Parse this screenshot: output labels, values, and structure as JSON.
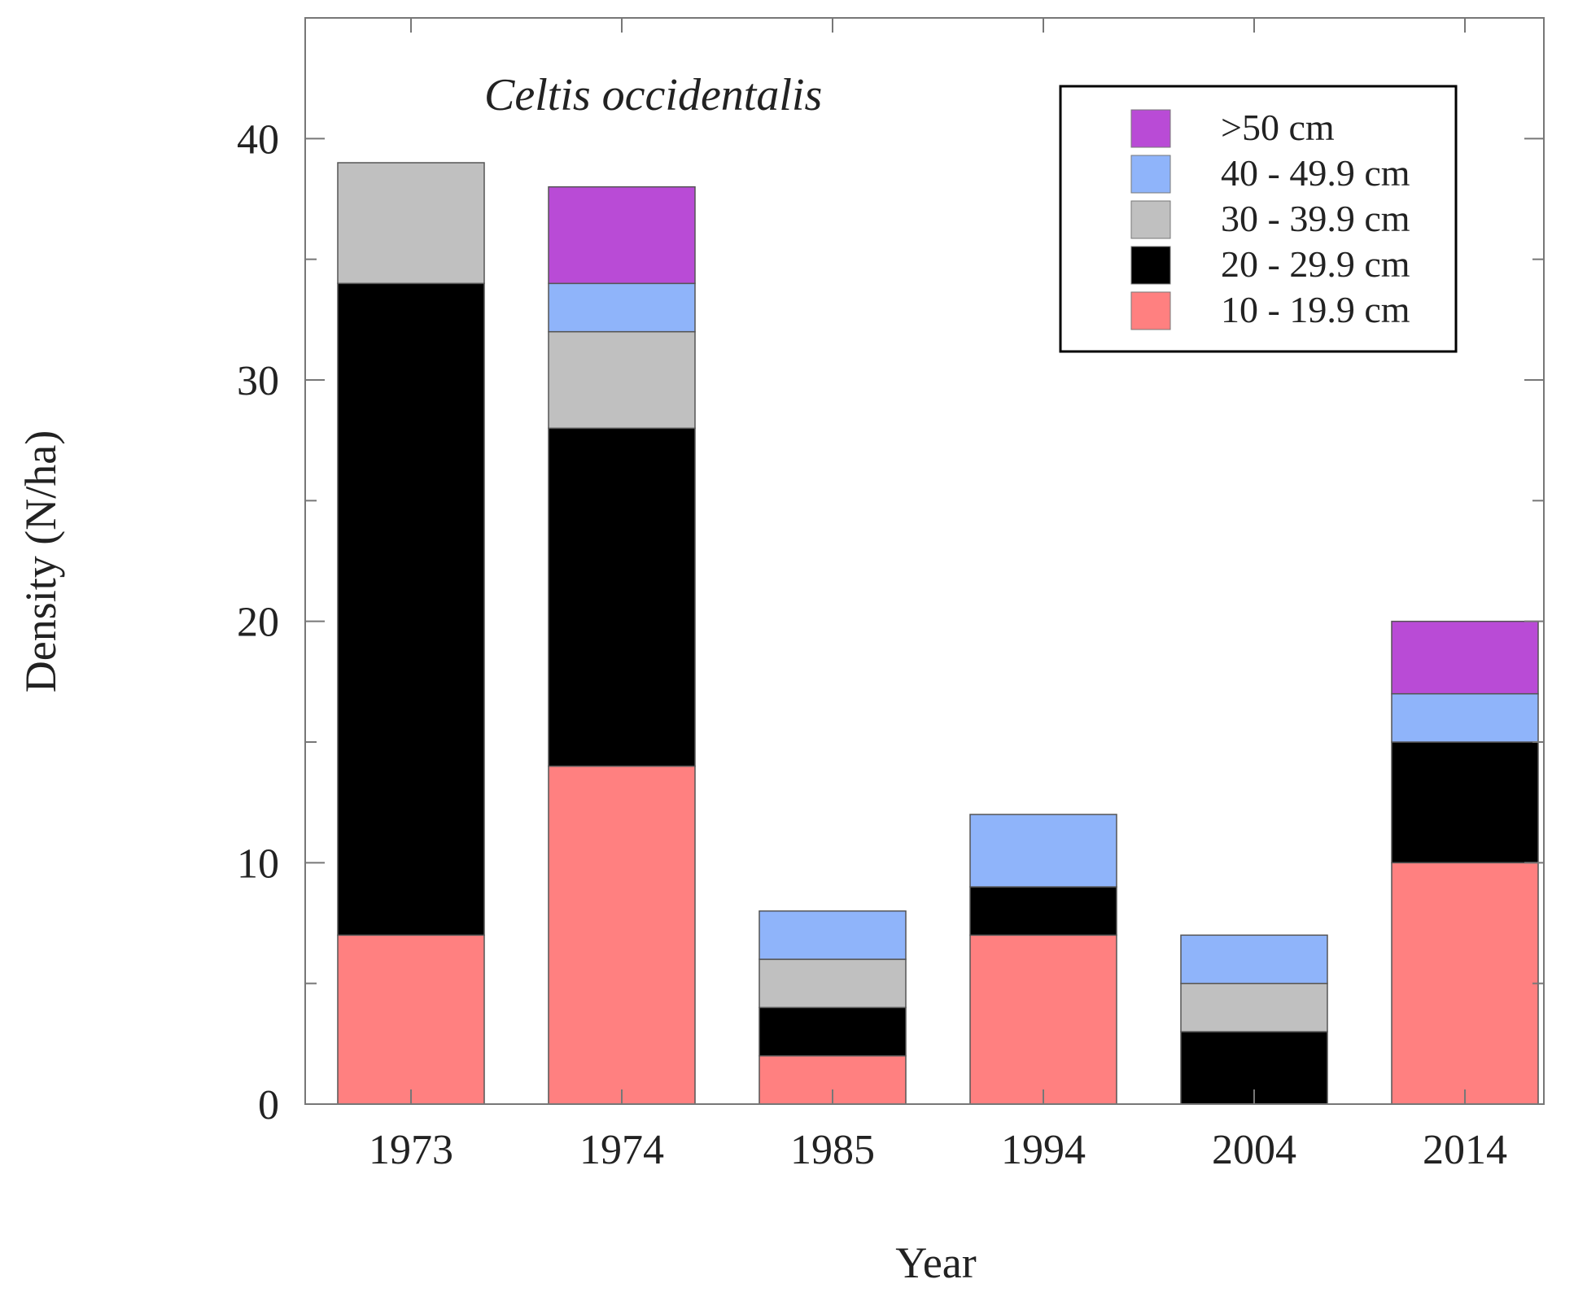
{
  "chart_data": {
    "type": "bar",
    "stacked": true,
    "title": "",
    "annotation": "Celtis occidentalis",
    "xlabel": "Year",
    "ylabel": "Density (N/ha)",
    "ylim": [
      0,
      45
    ],
    "yticks": [
      0,
      10,
      20,
      30,
      40
    ],
    "yminor_ticks": [
      5,
      15,
      25,
      35
    ],
    "grid": false,
    "legend_position": "top-right",
    "categories": [
      "1973",
      "1974",
      "1985",
      "1994",
      "2004",
      "2014"
    ],
    "series": [
      {
        "name": "10 - 19.9 cm",
        "color": "#ff8080",
        "values": [
          7,
          14,
          2,
          7,
          0,
          10
        ]
      },
      {
        "name": "20 - 29.9 cm",
        "color": "#000000",
        "values": [
          27,
          14,
          2,
          2,
          3,
          5
        ]
      },
      {
        "name": "30 - 39.9 cm",
        "color": "#c0c0c0",
        "values": [
          5,
          4,
          2,
          0,
          2,
          0
        ]
      },
      {
        "name": "40 - 49.9 cm",
        "color": "#8fb4fa",
        "values": [
          0,
          2,
          2,
          3,
          2,
          2
        ]
      },
      {
        "name": ">50 cm",
        "color": "#b94bd6",
        "values": [
          0,
          4,
          0,
          0,
          0,
          3
        ]
      }
    ],
    "legend_order": [
      ">50 cm",
      "40 - 49.9 cm",
      "30 - 39.9 cm",
      "20 - 29.9 cm",
      "10 - 19.9 cm"
    ]
  }
}
